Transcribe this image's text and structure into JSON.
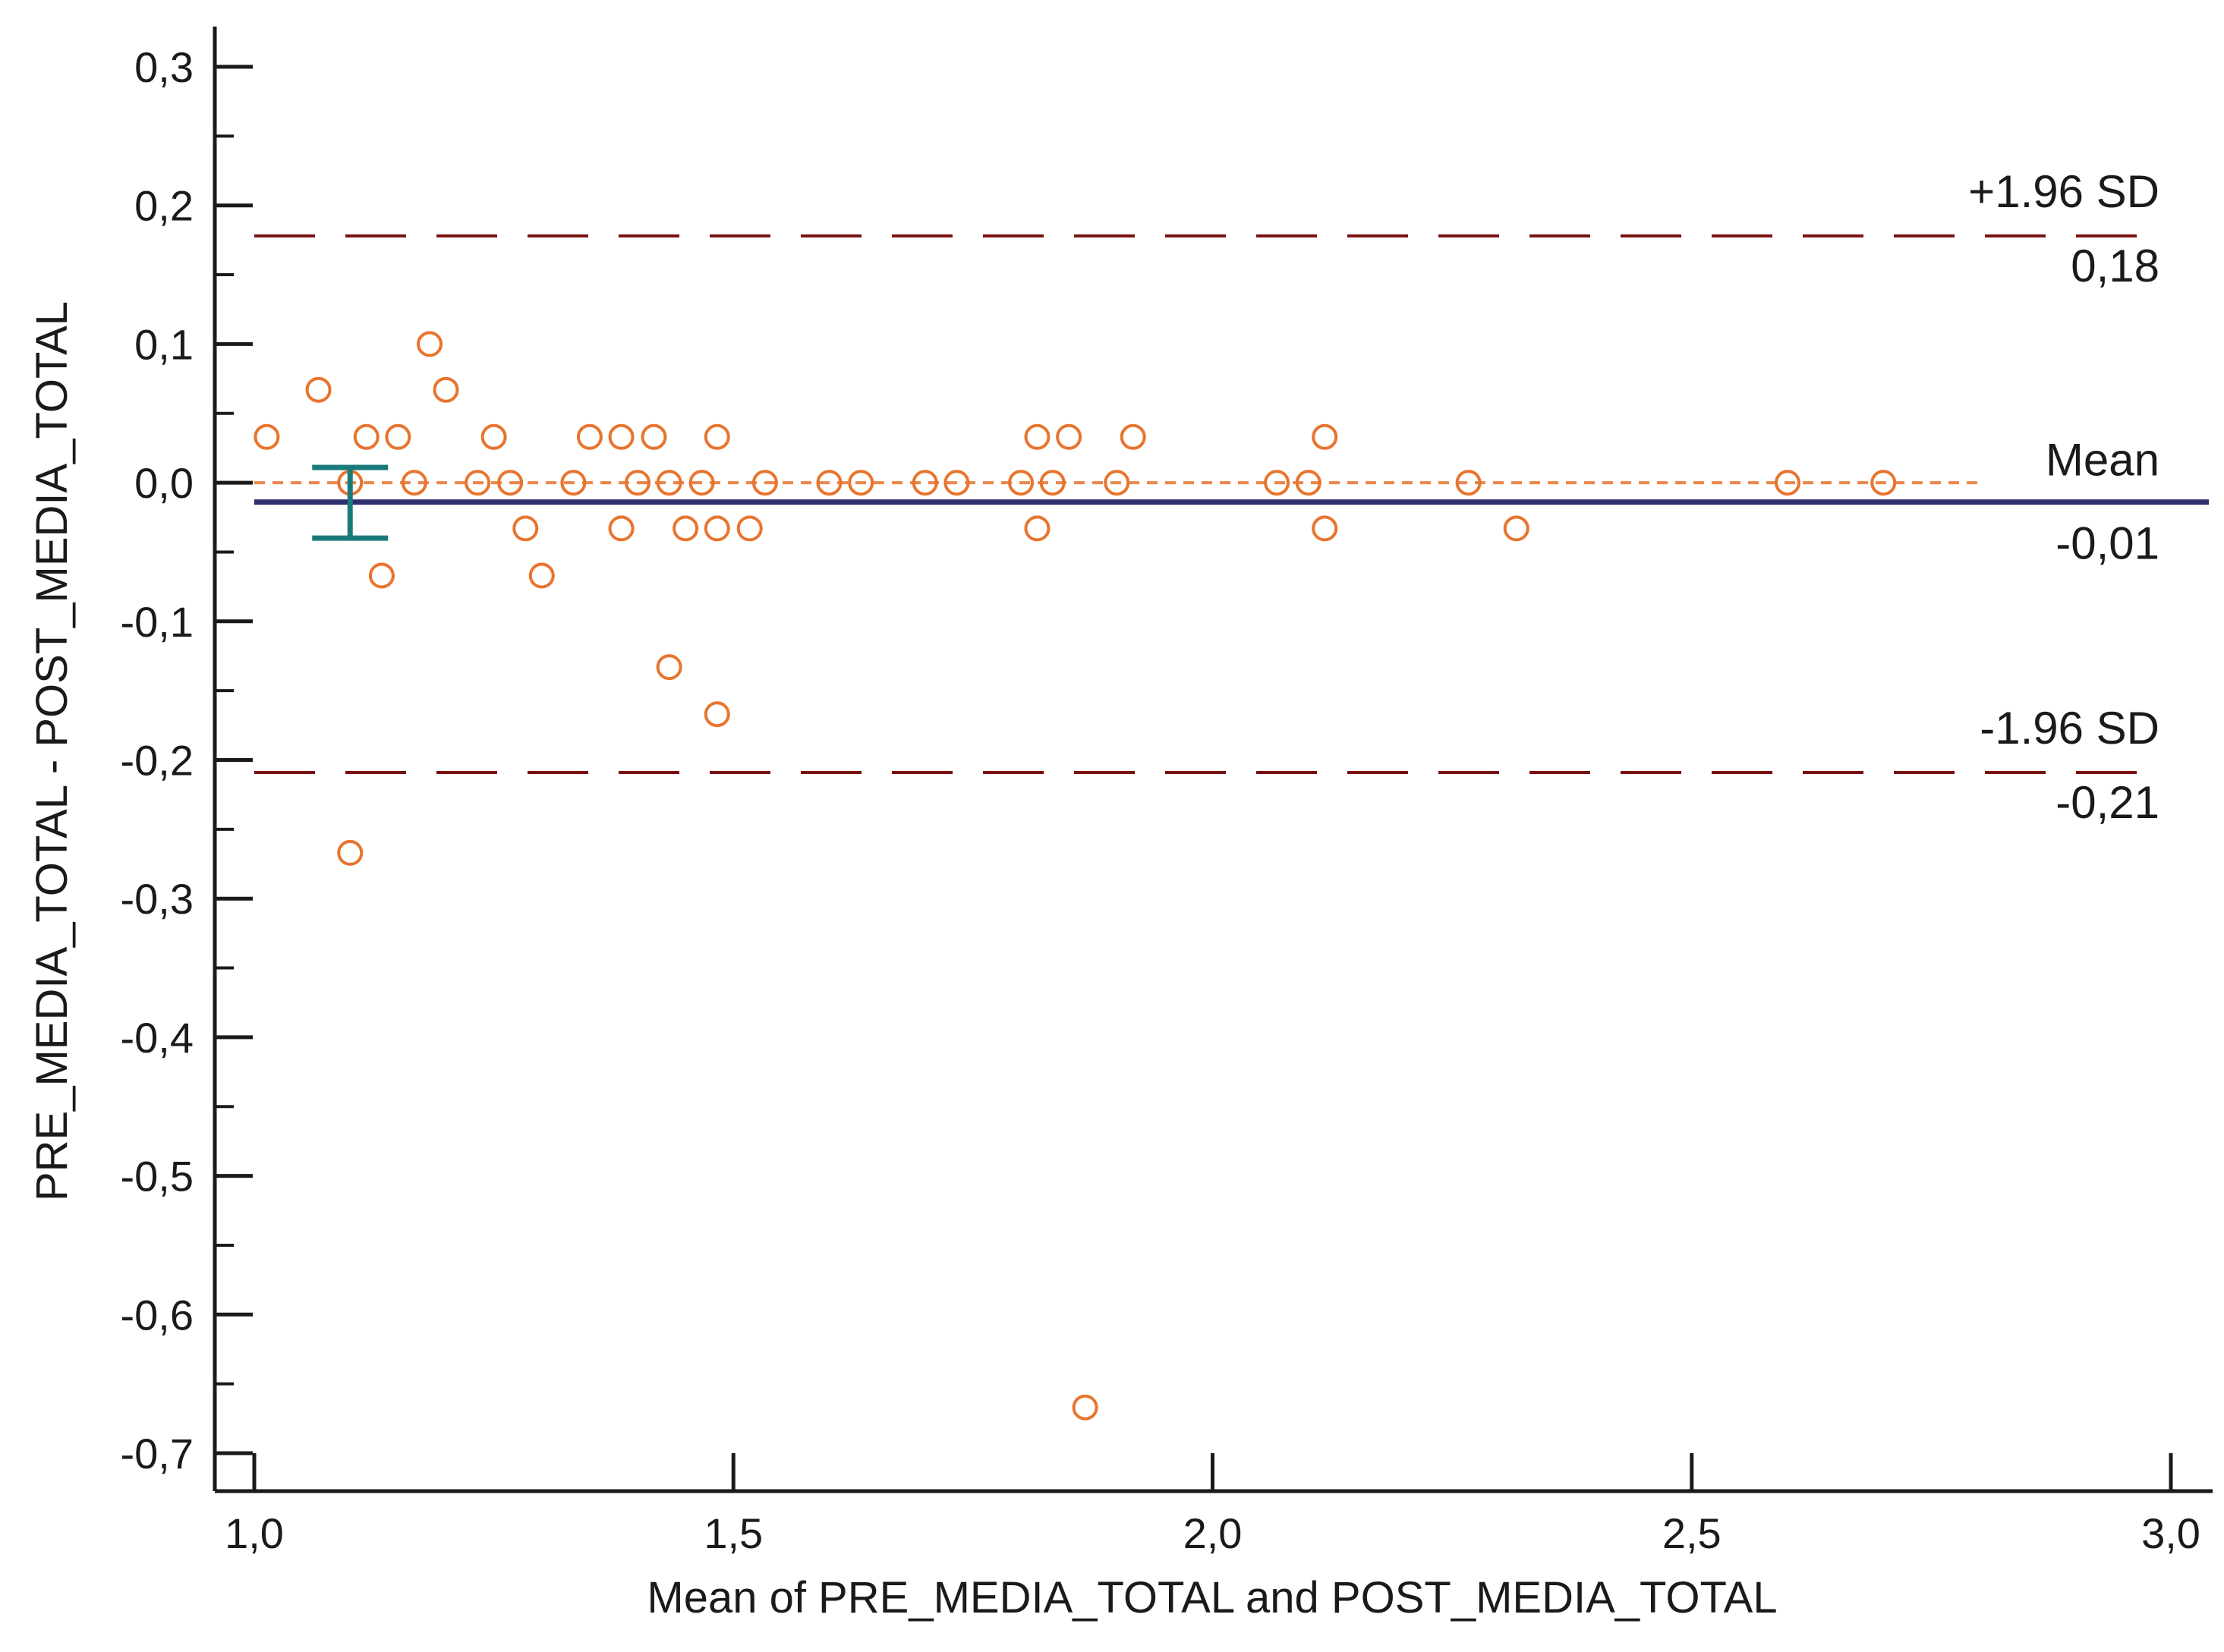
{
  "chart_data": {
    "type": "scatter",
    "title": "",
    "xlabel": "Mean of PRE_MEDIA_TOTAL and POST_MEDIA_TOTAL",
    "ylabel": "PRE_MEDIA_TOTAL - POST_MEDIA_TOTAL",
    "xlim": [
      1.0,
      3.0
    ],
    "ylim": [
      -0.7,
      0.3
    ],
    "x_ticks": [
      1.0,
      1.5,
      2.0,
      2.5,
      3.0
    ],
    "x_tick_labels": [
      "1,0",
      "1,5",
      "2,0",
      "2,5",
      "3,0"
    ],
    "y_ticks": [
      0.3,
      0.2,
      0.1,
      0.0,
      -0.1,
      -0.2,
      -0.3,
      -0.4,
      -0.5,
      -0.6,
      -0.7
    ],
    "y_tick_labels": [
      "0,3",
      "0,2",
      "0,1",
      "0,0",
      "-0,1",
      "-0,2",
      "-0,3",
      "-0,4",
      "-0,5",
      "-0,6",
      "-0,7"
    ],
    "grid": false,
    "reference_lines": {
      "upper": {
        "label": "+1.96 SD",
        "value_label": "0,18",
        "value": 0.178,
        "color": "#7a1010"
      },
      "mean": {
        "label": "Mean",
        "value_label": "-0,01",
        "value": -0.014,
        "color": "#2e2e6e"
      },
      "lower": {
        "label": "-1.96 SD",
        "value_label": "-0,21",
        "value": -0.209,
        "color": "#7a1010"
      },
      "zero": {
        "value": 0.0,
        "color": "#e8884a"
      }
    },
    "mean_ci": {
      "x": 1.1,
      "low": -0.04,
      "high": 0.011,
      "color": "#1a7a7a"
    },
    "marker_color": "#e8742e",
    "points": [
      {
        "x": 1.013,
        "y": 0.033
      },
      {
        "x": 1.067,
        "y": 0.067
      },
      {
        "x": 1.1,
        "y": 0.0
      },
      {
        "x": 1.1,
        "y": -0.267
      },
      {
        "x": 1.117,
        "y": 0.033
      },
      {
        "x": 1.133,
        "y": -0.067
      },
      {
        "x": 1.15,
        "y": 0.033
      },
      {
        "x": 1.167,
        "y": 0.0
      },
      {
        "x": 1.183,
        "y": 0.1
      },
      {
        "x": 1.2,
        "y": 0.067
      },
      {
        "x": 1.233,
        "y": 0.0
      },
      {
        "x": 1.25,
        "y": 0.033
      },
      {
        "x": 1.267,
        "y": 0.0
      },
      {
        "x": 1.283,
        "y": -0.033
      },
      {
        "x": 1.3,
        "y": -0.067
      },
      {
        "x": 1.333,
        "y": 0.0
      },
      {
        "x": 1.35,
        "y": 0.033
      },
      {
        "x": 1.383,
        "y": 0.033
      },
      {
        "x": 1.383,
        "y": -0.033
      },
      {
        "x": 1.4,
        "y": 0.0
      },
      {
        "x": 1.417,
        "y": 0.033
      },
      {
        "x": 1.433,
        "y": 0.0
      },
      {
        "x": 1.433,
        "y": -0.133
      },
      {
        "x": 1.45,
        "y": -0.033
      },
      {
        "x": 1.467,
        "y": 0.0
      },
      {
        "x": 1.483,
        "y": 0.033
      },
      {
        "x": 1.483,
        "y": -0.033
      },
      {
        "x": 1.483,
        "y": -0.167
      },
      {
        "x": 1.517,
        "y": -0.033
      },
      {
        "x": 1.533,
        "y": 0.0
      },
      {
        "x": 1.6,
        "y": 0.0
      },
      {
        "x": 1.633,
        "y": 0.0
      },
      {
        "x": 1.7,
        "y": 0.0
      },
      {
        "x": 1.733,
        "y": 0.0
      },
      {
        "x": 1.8,
        "y": 0.0
      },
      {
        "x": 1.817,
        "y": 0.033
      },
      {
        "x": 1.817,
        "y": -0.033
      },
      {
        "x": 1.833,
        "y": 0.0
      },
      {
        "x": 1.85,
        "y": 0.033
      },
      {
        "x": 1.867,
        "y": -0.667
      },
      {
        "x": 1.9,
        "y": 0.0
      },
      {
        "x": 1.917,
        "y": 0.033
      },
      {
        "x": 2.067,
        "y": 0.0
      },
      {
        "x": 2.1,
        "y": 0.0
      },
      {
        "x": 2.117,
        "y": 0.033
      },
      {
        "x": 2.117,
        "y": -0.033
      },
      {
        "x": 2.267,
        "y": 0.0
      },
      {
        "x": 2.317,
        "y": -0.033
      },
      {
        "x": 2.6,
        "y": 0.0
      },
      {
        "x": 2.7,
        "y": 0.0
      }
    ]
  }
}
